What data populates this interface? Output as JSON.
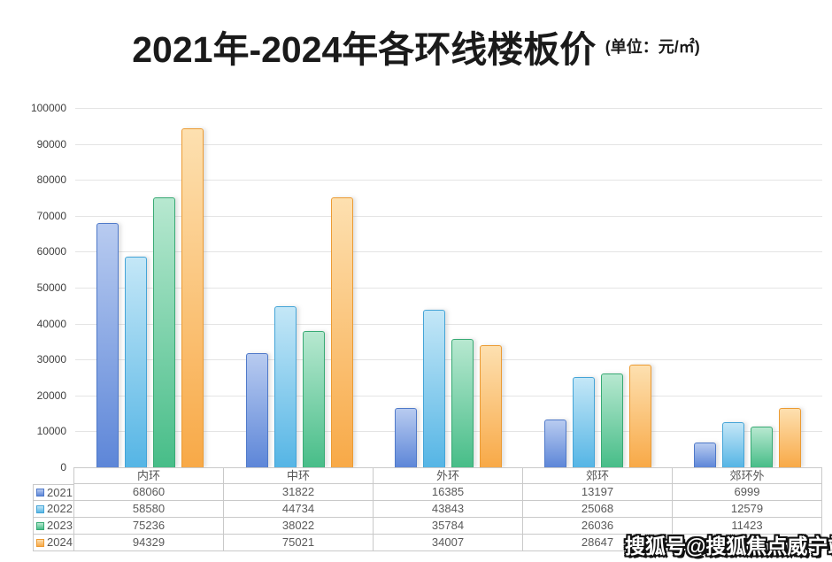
{
  "title": {
    "text": "2021年-2024年各环线楼板价",
    "unit": "(单位：元/㎡)"
  },
  "y_axis": {
    "ticks": [
      "100000",
      "90000",
      "80000",
      "70000",
      "60000",
      "50000",
      "40000",
      "30000",
      "20000",
      "10000",
      "0"
    ]
  },
  "chart_data": {
    "type": "bar",
    "title": "2021年-2024年各环线楼板价",
    "unit_label": "元/㎡",
    "categories": [
      "内环",
      "中环",
      "外环",
      "郊环",
      "郊环外"
    ],
    "series": [
      {
        "name": "2021",
        "values": [
          68060,
          31822,
          16385,
          13197,
          6999
        ],
        "color": "#5d86d8",
        "color_light": "#b8cbf0",
        "border": "#4f79c9"
      },
      {
        "name": "2022",
        "values": [
          58580,
          44734,
          43843,
          25068,
          12579
        ],
        "color": "#55b5e5",
        "color_light": "#c4e7f7",
        "border": "#44a4d7"
      },
      {
        "name": "2023",
        "values": [
          75236,
          38022,
          35784,
          26036,
          11423
        ],
        "color": "#47bd88",
        "color_light": "#b7e8d0",
        "border": "#38aa74"
      },
      {
        "name": "2024",
        "values": [
          94329,
          75021,
          34007,
          28647,
          16500
        ],
        "color": "#f8a947",
        "color_light": "#fde0b0",
        "border": "#ec9b33"
      }
    ],
    "ylim": [
      0,
      100000
    ],
    "ytick_step": 10000,
    "grid": true,
    "legend_position": "data-table-left"
  },
  "watermark": {
    "text": "搜狐号@搜狐焦点威宁站"
  }
}
